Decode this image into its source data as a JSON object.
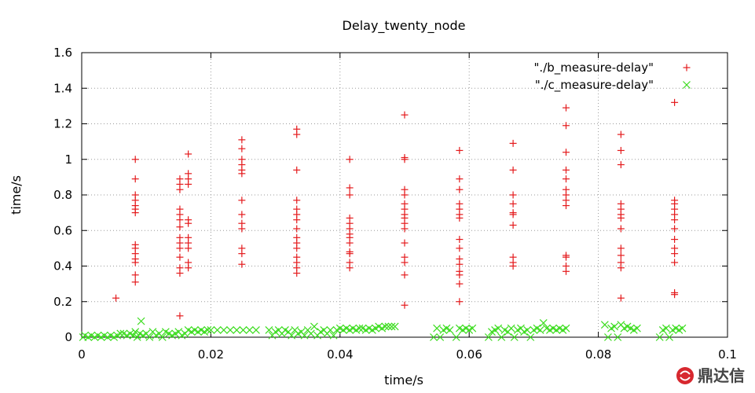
{
  "chart_data": {
    "type": "scatter",
    "title": "Delay_twenty_node",
    "xlabel": "time/s",
    "ylabel": "time/s",
    "xlim": [
      0,
      0.1
    ],
    "ylim": [
      0,
      1.6
    ],
    "xticks": [
      0,
      0.02,
      0.04,
      0.06,
      0.08,
      0.1
    ],
    "xtick_labels": [
      "0",
      "0.02",
      "0.04",
      "0.06",
      "0.08",
      "0.1"
    ],
    "yticks": [
      0,
      0.2,
      0.4,
      0.6,
      0.8,
      1.0,
      1.2,
      1.4,
      1.6
    ],
    "ytick_labels": [
      "0",
      "0.2",
      "0.4",
      "0.6",
      "0.8",
      "1",
      "1.2",
      "1.4",
      "1.6"
    ],
    "grid": true,
    "legend_position": "top-right",
    "series": [
      {
        "name": "\"./b_measure-delay\"",
        "marker": "plus",
        "color": "#e41a1c",
        "points": [
          [
            0.0053,
            0.22
          ],
          [
            0.0083,
            1.0
          ],
          [
            0.0083,
            0.89
          ],
          [
            0.0083,
            0.8
          ],
          [
            0.0083,
            0.77
          ],
          [
            0.0083,
            0.74
          ],
          [
            0.0083,
            0.72
          ],
          [
            0.0083,
            0.7
          ],
          [
            0.0083,
            0.52
          ],
          [
            0.0083,
            0.5
          ],
          [
            0.0083,
            0.47
          ],
          [
            0.0083,
            0.44
          ],
          [
            0.0083,
            0.42
          ],
          [
            0.0083,
            0.35
          ],
          [
            0.0083,
            0.31
          ],
          [
            0.0152,
            0.89
          ],
          [
            0.0152,
            0.86
          ],
          [
            0.0152,
            0.83
          ],
          [
            0.0152,
            0.72
          ],
          [
            0.0152,
            0.69
          ],
          [
            0.0152,
            0.66
          ],
          [
            0.0152,
            0.62
          ],
          [
            0.0152,
            0.56
          ],
          [
            0.0152,
            0.53
          ],
          [
            0.0152,
            0.5
          ],
          [
            0.0152,
            0.45
          ],
          [
            0.0152,
            0.39
          ],
          [
            0.0152,
            0.36
          ],
          [
            0.0152,
            0.12
          ],
          [
            0.0165,
            1.03
          ],
          [
            0.0165,
            0.92
          ],
          [
            0.0165,
            0.89
          ],
          [
            0.0165,
            0.86
          ],
          [
            0.0165,
            0.66
          ],
          [
            0.0165,
            0.64
          ],
          [
            0.0165,
            0.56
          ],
          [
            0.0165,
            0.53
          ],
          [
            0.0165,
            0.5
          ],
          [
            0.0165,
            0.42
          ],
          [
            0.0165,
            0.39
          ],
          [
            0.0248,
            1.11
          ],
          [
            0.0248,
            1.06
          ],
          [
            0.0248,
            1.0
          ],
          [
            0.0248,
            0.97
          ],
          [
            0.0248,
            0.94
          ],
          [
            0.0248,
            0.92
          ],
          [
            0.0248,
            0.77
          ],
          [
            0.0248,
            0.69
          ],
          [
            0.0248,
            0.64
          ],
          [
            0.0248,
            0.61
          ],
          [
            0.0248,
            0.5
          ],
          [
            0.0248,
            0.47
          ],
          [
            0.0248,
            0.41
          ],
          [
            0.0333,
            1.17
          ],
          [
            0.0333,
            1.14
          ],
          [
            0.0333,
            0.94
          ],
          [
            0.0333,
            0.77
          ],
          [
            0.0333,
            0.72
          ],
          [
            0.0333,
            0.69
          ],
          [
            0.0333,
            0.66
          ],
          [
            0.0333,
            0.61
          ],
          [
            0.0333,
            0.56
          ],
          [
            0.0333,
            0.53
          ],
          [
            0.0333,
            0.5
          ],
          [
            0.0333,
            0.45
          ],
          [
            0.0333,
            0.42
          ],
          [
            0.0333,
            0.39
          ],
          [
            0.0333,
            0.36
          ],
          [
            0.0415,
            1.0
          ],
          [
            0.0415,
            0.84
          ],
          [
            0.0415,
            0.8
          ],
          [
            0.0415,
            0.67
          ],
          [
            0.0415,
            0.64
          ],
          [
            0.0415,
            0.61
          ],
          [
            0.0415,
            0.58
          ],
          [
            0.0415,
            0.56
          ],
          [
            0.0415,
            0.53
          ],
          [
            0.0415,
            0.48
          ],
          [
            0.0415,
            0.47
          ],
          [
            0.0415,
            0.42
          ],
          [
            0.0415,
            0.39
          ],
          [
            0.05,
            1.25
          ],
          [
            0.05,
            1.01
          ],
          [
            0.05,
            1.0
          ],
          [
            0.05,
            0.83
          ],
          [
            0.05,
            0.8
          ],
          [
            0.05,
            0.75
          ],
          [
            0.05,
            0.72
          ],
          [
            0.05,
            0.69
          ],
          [
            0.05,
            0.67
          ],
          [
            0.05,
            0.64
          ],
          [
            0.05,
            0.61
          ],
          [
            0.05,
            0.53
          ],
          [
            0.05,
            0.45
          ],
          [
            0.05,
            0.42
          ],
          [
            0.05,
            0.35
          ],
          [
            0.05,
            0.18
          ],
          [
            0.0585,
            1.05
          ],
          [
            0.0585,
            0.89
          ],
          [
            0.0585,
            0.83
          ],
          [
            0.0585,
            0.75
          ],
          [
            0.0585,
            0.72
          ],
          [
            0.0585,
            0.69
          ],
          [
            0.0585,
            0.67
          ],
          [
            0.0585,
            0.55
          ],
          [
            0.0585,
            0.5
          ],
          [
            0.0585,
            0.44
          ],
          [
            0.0585,
            0.41
          ],
          [
            0.0585,
            0.37
          ],
          [
            0.0585,
            0.35
          ],
          [
            0.0585,
            0.3
          ],
          [
            0.0585,
            0.2
          ],
          [
            0.0668,
            1.09
          ],
          [
            0.0668,
            0.94
          ],
          [
            0.0668,
            0.8
          ],
          [
            0.0668,
            0.75
          ],
          [
            0.0668,
            0.7
          ],
          [
            0.0668,
            0.69
          ],
          [
            0.0668,
            0.63
          ],
          [
            0.0668,
            0.45
          ],
          [
            0.0668,
            0.42
          ],
          [
            0.0668,
            0.4
          ],
          [
            0.075,
            1.29
          ],
          [
            0.075,
            1.19
          ],
          [
            0.075,
            1.04
          ],
          [
            0.075,
            0.94
          ],
          [
            0.075,
            0.89
          ],
          [
            0.075,
            0.83
          ],
          [
            0.075,
            0.8
          ],
          [
            0.075,
            0.77
          ],
          [
            0.075,
            0.74
          ],
          [
            0.075,
            0.46
          ],
          [
            0.075,
            0.45
          ],
          [
            0.075,
            0.4
          ],
          [
            0.075,
            0.37
          ],
          [
            0.0835,
            1.14
          ],
          [
            0.0835,
            1.05
          ],
          [
            0.0835,
            0.97
          ],
          [
            0.0835,
            0.75
          ],
          [
            0.0835,
            0.72
          ],
          [
            0.0835,
            0.69
          ],
          [
            0.0835,
            0.67
          ],
          [
            0.0835,
            0.61
          ],
          [
            0.0835,
            0.5
          ],
          [
            0.0835,
            0.46
          ],
          [
            0.0835,
            0.42
          ],
          [
            0.0835,
            0.39
          ],
          [
            0.0835,
            0.22
          ],
          [
            0.0918,
            1.32
          ],
          [
            0.0918,
            0.77
          ],
          [
            0.0918,
            0.75
          ],
          [
            0.0918,
            0.72
          ],
          [
            0.0918,
            0.69
          ],
          [
            0.0918,
            0.66
          ],
          [
            0.0918,
            0.61
          ],
          [
            0.0918,
            0.55
          ],
          [
            0.0918,
            0.5
          ],
          [
            0.0918,
            0.47
          ],
          [
            0.0918,
            0.42
          ],
          [
            0.0918,
            0.25
          ],
          [
            0.0918,
            0.24
          ]
        ]
      },
      {
        "name": "\"./c_measure-delay\"",
        "marker": "cross",
        "color": "#3bdc1e",
        "points": [
          [
            0.0002,
            0.0
          ],
          [
            0.0005,
            0.01
          ],
          [
            0.001,
            0.0
          ],
          [
            0.0015,
            0.01
          ],
          [
            0.002,
            0.0
          ],
          [
            0.0025,
            0.01
          ],
          [
            0.003,
            0.0
          ],
          [
            0.0035,
            0.01
          ],
          [
            0.004,
            0.0
          ],
          [
            0.0045,
            0.01
          ],
          [
            0.005,
            0.0
          ],
          [
            0.0055,
            0.01
          ],
          [
            0.006,
            0.02
          ],
          [
            0.0065,
            0.02
          ],
          [
            0.007,
            0.01
          ],
          [
            0.0075,
            0.02
          ],
          [
            0.008,
            0.01
          ],
          [
            0.0083,
            0.03
          ],
          [
            0.0086,
            0.0
          ],
          [
            0.009,
            0.02
          ],
          [
            0.0092,
            0.09
          ],
          [
            0.0095,
            0.01
          ],
          [
            0.01,
            0.02
          ],
          [
            0.0105,
            0.0
          ],
          [
            0.011,
            0.03
          ],
          [
            0.0115,
            0.01
          ],
          [
            0.012,
            0.02
          ],
          [
            0.0125,
            0.0
          ],
          [
            0.013,
            0.03
          ],
          [
            0.0135,
            0.02
          ],
          [
            0.014,
            0.01
          ],
          [
            0.0145,
            0.02
          ],
          [
            0.015,
            0.03
          ],
          [
            0.0155,
            0.01
          ],
          [
            0.016,
            0.02
          ],
          [
            0.0165,
            0.04
          ],
          [
            0.017,
            0.03
          ],
          [
            0.0175,
            0.04
          ],
          [
            0.018,
            0.03
          ],
          [
            0.0185,
            0.04
          ],
          [
            0.019,
            0.03
          ],
          [
            0.0195,
            0.04
          ],
          [
            0.02,
            0.04
          ],
          [
            0.021,
            0.04
          ],
          [
            0.022,
            0.04
          ],
          [
            0.023,
            0.04
          ],
          [
            0.024,
            0.04
          ],
          [
            0.025,
            0.04
          ],
          [
            0.026,
            0.04
          ],
          [
            0.027,
            0.04
          ],
          [
            0.029,
            0.04
          ],
          [
            0.0295,
            0.01
          ],
          [
            0.03,
            0.03
          ],
          [
            0.0305,
            0.04
          ],
          [
            0.031,
            0.02
          ],
          [
            0.0315,
            0.04
          ],
          [
            0.032,
            0.03
          ],
          [
            0.0325,
            0.01
          ],
          [
            0.033,
            0.04
          ],
          [
            0.0335,
            0.02
          ],
          [
            0.034,
            0.03
          ],
          [
            0.0345,
            0.01
          ],
          [
            0.035,
            0.04
          ],
          [
            0.0355,
            0.02
          ],
          [
            0.036,
            0.06
          ],
          [
            0.0365,
            0.01
          ],
          [
            0.037,
            0.03
          ],
          [
            0.0375,
            0.04
          ],
          [
            0.038,
            0.02
          ],
          [
            0.0385,
            0.04
          ],
          [
            0.039,
            0.01
          ],
          [
            0.0395,
            0.04
          ],
          [
            0.04,
            0.05
          ],
          [
            0.0405,
            0.04
          ],
          [
            0.041,
            0.05
          ],
          [
            0.0415,
            0.04
          ],
          [
            0.042,
            0.05
          ],
          [
            0.0425,
            0.04
          ],
          [
            0.043,
            0.05
          ],
          [
            0.0435,
            0.05
          ],
          [
            0.044,
            0.04
          ],
          [
            0.0445,
            0.05
          ],
          [
            0.045,
            0.04
          ],
          [
            0.0455,
            0.05
          ],
          [
            0.046,
            0.06
          ],
          [
            0.0465,
            0.05
          ],
          [
            0.047,
            0.06
          ],
          [
            0.0475,
            0.06
          ],
          [
            0.048,
            0.06
          ],
          [
            0.0485,
            0.06
          ],
          [
            0.0545,
            0.0
          ],
          [
            0.055,
            0.05
          ],
          [
            0.0555,
            0.0
          ],
          [
            0.056,
            0.04
          ],
          [
            0.0565,
            0.05
          ],
          [
            0.057,
            0.04
          ],
          [
            0.058,
            0.0
          ],
          [
            0.0585,
            0.05
          ],
          [
            0.059,
            0.04
          ],
          [
            0.0595,
            0.05
          ],
          [
            0.06,
            0.04
          ],
          [
            0.0605,
            0.05
          ],
          [
            0.063,
            0.0
          ],
          [
            0.0635,
            0.03
          ],
          [
            0.064,
            0.04
          ],
          [
            0.0645,
            0.05
          ],
          [
            0.065,
            0.0
          ],
          [
            0.0655,
            0.04
          ],
          [
            0.066,
            0.03
          ],
          [
            0.0665,
            0.05
          ],
          [
            0.067,
            0.0
          ],
          [
            0.0675,
            0.04
          ],
          [
            0.068,
            0.05
          ],
          [
            0.0685,
            0.03
          ],
          [
            0.069,
            0.04
          ],
          [
            0.0695,
            0.0
          ],
          [
            0.07,
            0.04
          ],
          [
            0.0705,
            0.05
          ],
          [
            0.071,
            0.04
          ],
          [
            0.0715,
            0.08
          ],
          [
            0.072,
            0.05
          ],
          [
            0.0725,
            0.04
          ],
          [
            0.073,
            0.05
          ],
          [
            0.0735,
            0.04
          ],
          [
            0.074,
            0.05
          ],
          [
            0.0745,
            0.04
          ],
          [
            0.075,
            0.05
          ],
          [
            0.081,
            0.07
          ],
          [
            0.0815,
            0.0
          ],
          [
            0.082,
            0.05
          ],
          [
            0.0825,
            0.06
          ],
          [
            0.083,
            0.0
          ],
          [
            0.0835,
            0.07
          ],
          [
            0.084,
            0.05
          ],
          [
            0.0845,
            0.06
          ],
          [
            0.085,
            0.05
          ],
          [
            0.0855,
            0.04
          ],
          [
            0.086,
            0.05
          ],
          [
            0.0895,
            0.0
          ],
          [
            0.09,
            0.04
          ],
          [
            0.0905,
            0.05
          ],
          [
            0.091,
            0.0
          ],
          [
            0.0915,
            0.04
          ],
          [
            0.092,
            0.05
          ],
          [
            0.0925,
            0.04
          ],
          [
            0.093,
            0.05
          ]
        ]
      }
    ]
  },
  "watermark": {
    "text": "鼎达信",
    "icon": "logo-icon",
    "color": "#d7282f"
  }
}
